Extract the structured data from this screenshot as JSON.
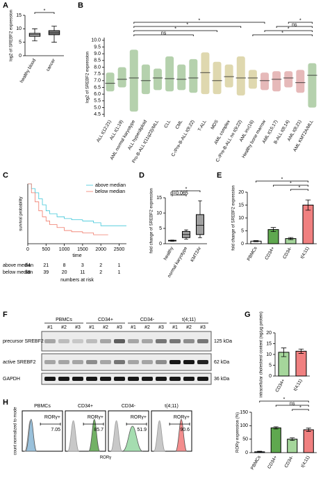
{
  "chart_data": [
    {
      "type": "box",
      "panel_label": "A",
      "y_label": "log2 of SREBF2 expression",
      "categories": [
        "healthy blood",
        "cancer"
      ],
      "colors": [
        "#c8c8c8",
        "#808080"
      ],
      "min": [
        5.5,
        5
      ],
      "q1": [
        7.2,
        7.8
      ],
      "median": [
        7.8,
        8.5
      ],
      "q3": [
        8.3,
        9.3
      ],
      "max": [
        10,
        11
      ],
      "ylim": [
        0,
        15
      ],
      "yticks": [
        0,
        5,
        10,
        15
      ],
      "significance": [
        "*"
      ]
    },
    {
      "type": "strip",
      "panel_label": "B",
      "y_label": "log2 of SREBF2 expression",
      "categories": [
        "ALL t(12;21)",
        "ALL t(1;19)",
        "AML normal karyotype",
        "ALL hyperdiploid",
        "Pro-B-ALL t(11q23)/MLL",
        "CLL",
        "CML",
        "C-/Pre-B-ALL t(9;22)",
        "T-ALL",
        "MDS",
        "AML complex",
        "C-/Pre-B-ALL no t(9;22)",
        "AML inv(16)",
        "Healthy bone marrow",
        "AML t(15;17)",
        "B-ALL t(8;14)",
        "AML t(8;21)",
        "AML KMT2A/MLL"
      ],
      "colors": [
        "#5a9a4a",
        "#5a9a4a",
        "#5a9a4a",
        "#5a9a4a",
        "#5a9a4a",
        "#5a9a4a",
        "#5a9a4a",
        "#5a9a4a",
        "#b8a94e",
        "#b8a94e",
        "#b8a94e",
        "#b8a94e",
        "#b8a94e",
        "#c86464",
        "#c86464",
        "#c86464",
        "#c86464",
        "#5a9a4a"
      ],
      "median": [
        6.8,
        7.1,
        7.2,
        7.0,
        7.2,
        7.15,
        7.1,
        7.2,
        7.6,
        7.0,
        7.3,
        7.2,
        7.2,
        7.0,
        7.1,
        7.2,
        6.85,
        7.4
      ],
      "min": [
        6.2,
        6.5,
        4.7,
        6.0,
        6.3,
        6.2,
        6.3,
        6.1,
        6.0,
        6.0,
        6.5,
        5.9,
        6.4,
        6.3,
        6.2,
        6.5,
        6.1,
        5.0
      ],
      "max": [
        7.6,
        8.0,
        9.3,
        8.2,
        7.9,
        8.8,
        8.2,
        8.6,
        9.1,
        8.4,
        8.2,
        8.8,
        7.8,
        7.6,
        7.7,
        7.7,
        7.8,
        8.3
      ],
      "ylim": [
        4.3,
        10.2
      ],
      "yticks": [
        4.5,
        {
          "value": 5,
          "label": "5.0"
        },
        5.5,
        {
          "value": 6,
          "label": "6.0"
        },
        6.5,
        {
          "value": 7,
          "label": "7.0"
        },
        7.5,
        {
          "value": 8,
          "label": "8.0"
        },
        8.5,
        {
          "value": 9,
          "label": "9.0"
        },
        9.5,
        {
          "value": 10,
          "label": "10.0"
        }
      ],
      "significance": [
        "ns",
        "*",
        "*",
        "*",
        "*",
        "*",
        "ns",
        "*"
      ]
    },
    {
      "type": "km",
      "panel_label": "C",
      "y_label": "survival probability",
      "x_label": "time",
      "x": [
        0,
        100,
        200,
        300,
        400,
        500,
        600,
        800,
        1000,
        1200,
        1500,
        1800,
        2000,
        2200,
        2700
      ],
      "series": [
        {
          "name": "above median",
          "color": "#3cc6d8",
          "values": [
            1,
            0.92,
            0.85,
            0.75,
            0.65,
            0.55,
            0.5,
            0.45,
            0.42,
            0.4,
            0.38,
            0.35,
            0.3,
            0.3,
            0.3
          ]
        },
        {
          "name": "below median",
          "color": "#f07a6a",
          "values": [
            1,
            0.85,
            0.7,
            0.55,
            0.45,
            0.38,
            0.32,
            0.27,
            0.22,
            0.2,
            0.18,
            0.15,
            0.15,
            0.15,
            null
          ]
        }
      ],
      "xlim": [
        0,
        2700
      ],
      "ylim": [
        0,
        1
      ],
      "xticks": [
        0,
        500,
        1000,
        1500,
        2000,
        2500
      ],
      "at_risk": {
        "title": "numbers at risk",
        "rows": [
          {
            "name": "above median",
            "values": [
              84,
              21,
              8,
              3,
              2,
              1
            ]
          },
          {
            "name": "below median",
            "values": [
              88,
              39,
              20,
              11,
              2,
              1
            ]
          }
        ]
      }
    },
    {
      "type": "box",
      "panel_label": "D",
      "y_label": "fold change of SREBF2 expression",
      "categories": [
        "healthy",
        "normal karyotype",
        "KMT2Ar"
      ],
      "colors": [
        "#a0a0a0",
        "#a0a0a0",
        "#a0a0a0"
      ],
      "min": [
        0.8,
        1.5,
        2
      ],
      "q1": [
        0.9,
        2,
        3
      ],
      "median": [
        1,
        3,
        6
      ],
      "q3": [
        1.1,
        4,
        9.5
      ],
      "max": [
        1.2,
        4.5,
        14
      ],
      "ylim": [
        0,
        15
      ],
      "yticks": [
        0,
        5,
        10,
        15
      ],
      "significance": [
        "p=0.065",
        "*"
      ]
    },
    {
      "type": "bar",
      "panel_label": "E",
      "y_label": "fold change of SREBF2 expression",
      "categories": [
        "PBMCs",
        "CD34+",
        "CD34-",
        "t(4;11)"
      ],
      "colors": [
        "#ffffff",
        "#5fa84f",
        "#a5d69b",
        "#f08080"
      ],
      "values": [
        1,
        5.5,
        2,
        15
      ],
      "errors": [
        0.2,
        0.8,
        0.4,
        2
      ],
      "ylim": [
        0,
        20
      ],
      "yticks": [
        0,
        5,
        10,
        15,
        20
      ],
      "significance": [
        "*",
        "*",
        "*"
      ]
    },
    {
      "type": "bar",
      "panel_label": "G",
      "y_label": "intracellular cholesterol content (ng/µg protein)",
      "categories": [
        "CD34+",
        "t(4;11)"
      ],
      "colors": [
        "#a5d69b",
        "#f08080"
      ],
      "values": [
        11,
        11.5
      ],
      "errors": [
        2,
        1
      ],
      "ylim": [
        0,
        20
      ],
      "yticks": [
        0,
        5,
        10,
        15,
        20
      ]
    },
    {
      "type": "bar",
      "y_label": "RORγ expression (%)",
      "categories": [
        "PBMCs",
        "CD34+",
        "CD34-",
        "t(4;11)"
      ],
      "colors": [
        "#8fbfe0",
        "#5fa84f",
        "#a5d69b",
        "#f08080"
      ],
      "values": [
        3,
        92,
        50,
        85
      ],
      "errors": [
        2,
        4,
        5,
        6
      ],
      "ylim": [
        0,
        150
      ],
      "yticks": [
        0,
        50,
        100,
        150
      ],
      "significance": [
        "*",
        "ns",
        "*"
      ]
    }
  ],
  "blot": {
    "panel_label": "F",
    "groups": [
      "PBMCs",
      "CD34+",
      "CD34-",
      "t(4;11)"
    ],
    "lanes": [
      "#1",
      "#2",
      "#3"
    ],
    "rows": [
      {
        "name": "precursor SREBF2",
        "size": "125 kDa"
      },
      {
        "name": "active SREBF2",
        "size": "62 kDa"
      },
      {
        "name": "GAPDH",
        "size": "36 kDa"
      }
    ]
  },
  "flow": {
    "panel_label": "H",
    "y_label": "count normalized to mode",
    "x_label": "RORγ",
    "gate_label": "RORγ+",
    "panels": [
      {
        "title": "PBMCs",
        "percent": 7.05,
        "color": "#8fbfe0"
      },
      {
        "title": "CD34+",
        "percent": 85.7,
        "color": "#4f9e3e"
      },
      {
        "title": "CD34-",
        "percent": 51.9,
        "color": "#8fd49c"
      },
      {
        "title": "t(4;11)",
        "percent": 90.6,
        "color": "#f07070"
      }
    ]
  }
}
